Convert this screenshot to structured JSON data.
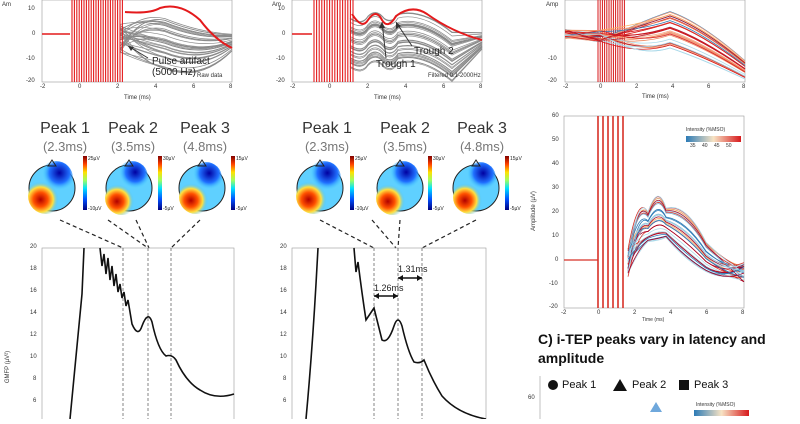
{
  "top_left": {
    "xlabel": "Time (ms)",
    "ylabel": "Am",
    "xticks": [
      "-2",
      "0",
      "2",
      "4",
      "6",
      "8"
    ],
    "yticks": [
      "10",
      "0",
      "-10",
      "-20"
    ],
    "annotation_artifact_line1": "Pulse artifact",
    "annotation_artifact_line2": "(5000 Hz)",
    "corner_label": "Raw data"
  },
  "top_mid": {
    "xlabel": "Time (ms)",
    "ylabel": "Am",
    "xticks": [
      "-2",
      "0",
      "2",
      "4",
      "6",
      "8"
    ],
    "yticks": [
      "10",
      "0",
      "-10",
      "-20"
    ],
    "annotation_trough1": "Trough 1",
    "annotation_trough2": "Trough 2",
    "corner_label": "Filtered 0.1-2000Hz"
  },
  "top_right": {
    "xlabel": "Time (ms)",
    "ylabel": "Amp",
    "xticks": [
      "-2",
      "0",
      "2",
      "4",
      "6",
      "8"
    ],
    "yticks": [
      "-10",
      "-20"
    ]
  },
  "mid_right": {
    "xlabel": "Time (ms)",
    "ylabel": "Amplitude (µV)",
    "xticks": [
      "-2",
      "0",
      "2",
      "4",
      "6",
      "8"
    ],
    "yticks": [
      "60",
      "50",
      "40",
      "30",
      "20",
      "10",
      "0",
      "-10",
      "-20"
    ],
    "colorbar_title": "Intensity (%MSO)",
    "colorbar_ticks": [
      "35",
      "40",
      "45",
      "50"
    ]
  },
  "topo_left": {
    "peaks": [
      {
        "name": "Peak 1",
        "latency": "(2.3ms)",
        "scale_max": "25µV",
        "scale_min": "-10µV"
      },
      {
        "name": "Peak 2",
        "latency": "(3.5ms)",
        "scale_max": "30µV",
        "scale_min": "-5µV"
      },
      {
        "name": "Peak 3",
        "latency": "(4.8ms)",
        "scale_max": "15µV",
        "scale_min": "-5µV"
      }
    ]
  },
  "topo_mid": {
    "peaks": [
      {
        "name": "Peak 1",
        "latency": "(2.3ms)",
        "scale_max": "25µV",
        "scale_min": "-10µV"
      },
      {
        "name": "Peak 2",
        "latency": "(3.5ms)",
        "scale_max": "30µV",
        "scale_min": "-5µV"
      },
      {
        "name": "Peak 3",
        "latency": "(4.8ms)",
        "scale_max": "15µV",
        "scale_min": "-5µV"
      }
    ]
  },
  "gmfp_left": {
    "ylabel": "GMFP (µV²)",
    "yticks": [
      "20",
      "18",
      "16",
      "14",
      "12",
      "10",
      "8",
      "6"
    ]
  },
  "gmfp_mid": {
    "yticks": [
      "20",
      "18",
      "16",
      "14",
      "12",
      "10",
      "8",
      "6"
    ],
    "interval1": "1.26ms",
    "interval2": "1.31ms"
  },
  "panel_c": {
    "title_line1": "C) i-TEP peaks vary in latency and",
    "title_line2": "amplitude",
    "legend": [
      "Peak 1",
      "Peak 2",
      "Peak 3"
    ],
    "ytick": "60",
    "colorbar_title": "Intensity (%MSO)"
  },
  "colors": {
    "red_trace": "#e41a1c",
    "gray_trace": "#7f7f7f",
    "blue": "#2c7bb6",
    "orange": "#fdae61",
    "marker_blue": "#6fa8dc"
  }
}
